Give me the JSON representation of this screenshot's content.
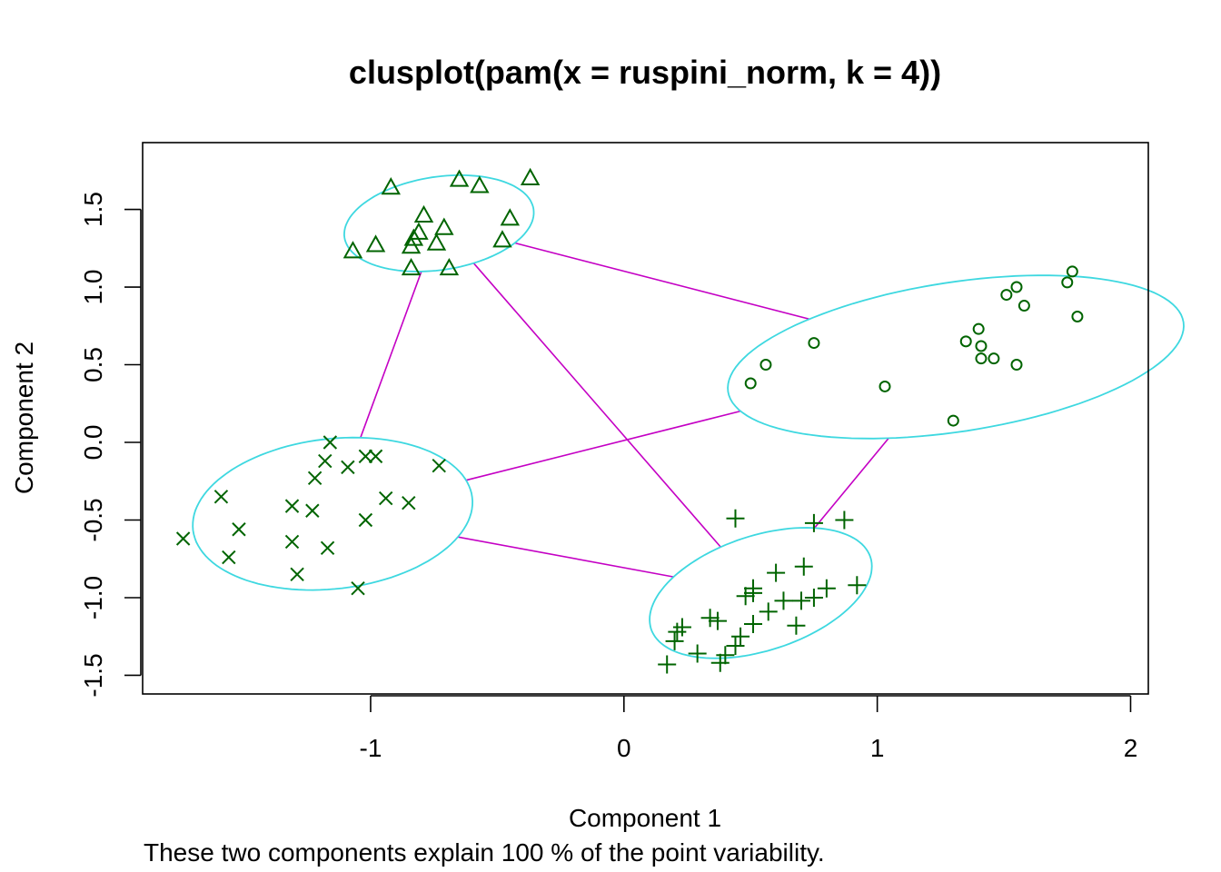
{
  "chart_data": {
    "type": "scatter",
    "title": "clusplot(pam(x = ruspini_norm, k = 4))",
    "xlabel": "Component 1",
    "ylabel": "Component 2",
    "subtitle": "These two components explain 100 % of the point variability.",
    "xlim": [
      -1.9,
      2.07
    ],
    "ylim": [
      -1.62,
      1.93
    ],
    "x_ticks": [
      -1,
      0,
      1,
      2
    ],
    "x_tick_labels": [
      "-1",
      "0",
      "1",
      "2"
    ],
    "y_ticks": [
      -1.5,
      -1.0,
      -0.5,
      0.0,
      0.5,
      1.0,
      1.5
    ],
    "y_tick_labels": [
      "-1.5",
      "-1.0",
      "-0.5",
      "0.0",
      "0.5",
      "1.0",
      "1.5"
    ],
    "grid": false,
    "colors": {
      "points": "#006400",
      "ellipse": "#3ed8e0",
      "links": "#c400c4",
      "frame": "#000000"
    },
    "clusters": [
      {
        "symbol": "circle",
        "center": [
          1.31,
          0.55
        ],
        "semi_axes": [
          0.93,
          0.47
        ],
        "angle_deg": 17,
        "points": [
          [
            0.5,
            0.38
          ],
          [
            0.56,
            0.5
          ],
          [
            0.75,
            0.64
          ],
          [
            1.03,
            0.36
          ],
          [
            1.3,
            0.14
          ],
          [
            1.35,
            0.65
          ],
          [
            1.4,
            0.73
          ],
          [
            1.41,
            0.62
          ],
          [
            1.41,
            0.54
          ],
          [
            1.46,
            0.54
          ],
          [
            1.51,
            0.95
          ],
          [
            1.55,
            1.0
          ],
          [
            1.58,
            0.88
          ],
          [
            1.55,
            0.5
          ],
          [
            1.75,
            1.03
          ],
          [
            1.77,
            1.1
          ],
          [
            1.79,
            0.81
          ]
        ]
      },
      {
        "symbol": "cross",
        "center": [
          -1.15,
          -0.46
        ],
        "semi_axes": [
          0.57,
          0.47
        ],
        "angle_deg": 26,
        "points": [
          [
            -1.74,
            -0.62
          ],
          [
            -1.59,
            -0.35
          ],
          [
            -1.56,
            -0.74
          ],
          [
            -1.52,
            -0.56
          ],
          [
            -1.31,
            -0.41
          ],
          [
            -1.31,
            -0.64
          ],
          [
            -1.29,
            -0.85
          ],
          [
            -1.23,
            -0.44
          ],
          [
            -1.22,
            -0.23
          ],
          [
            -1.18,
            -0.12
          ],
          [
            -1.17,
            -0.68
          ],
          [
            -1.16,
            0.0
          ],
          [
            -1.09,
            -0.16
          ],
          [
            -1.05,
            -0.94
          ],
          [
            -1.02,
            -0.5
          ],
          [
            -1.02,
            -0.09
          ],
          [
            -0.98,
            -0.09
          ],
          [
            -0.94,
            -0.36
          ],
          [
            -0.85,
            -0.39
          ],
          [
            -0.73,
            -0.15
          ]
        ]
      },
      {
        "symbol": "triangle",
        "center": [
          -0.73,
          1.41
        ],
        "semi_axes": [
          0.39,
          0.29
        ],
        "angle_deg": 25,
        "points": [
          [
            -1.07,
            1.23
          ],
          [
            -0.98,
            1.27
          ],
          [
            -0.92,
            1.64
          ],
          [
            -0.84,
            1.26
          ],
          [
            -0.83,
            1.31
          ],
          [
            -0.81,
            1.35
          ],
          [
            -0.79,
            1.46
          ],
          [
            -0.74,
            1.28
          ],
          [
            -0.71,
            1.38
          ],
          [
            -0.69,
            1.12
          ],
          [
            -0.84,
            1.12
          ],
          [
            -0.65,
            1.69
          ],
          [
            -0.57,
            1.65
          ],
          [
            -0.45,
            1.44
          ],
          [
            -0.48,
            1.3
          ],
          [
            -0.37,
            1.7
          ]
        ]
      },
      {
        "symbol": "plus",
        "center": [
          0.54,
          -0.97
        ],
        "semi_axes": [
          0.51,
          0.33
        ],
        "angle_deg": 42,
        "points": [
          [
            0.17,
            -1.43
          ],
          [
            0.2,
            -1.28
          ],
          [
            0.21,
            -1.22
          ],
          [
            0.23,
            -1.19
          ],
          [
            0.29,
            -1.36
          ],
          [
            0.34,
            -1.13
          ],
          [
            0.37,
            -1.15
          ],
          [
            0.38,
            -1.42
          ],
          [
            0.4,
            -1.37
          ],
          [
            0.44,
            -0.49
          ],
          [
            0.44,
            -1.31
          ],
          [
            0.46,
            -1.25
          ],
          [
            0.48,
            -0.99
          ],
          [
            0.51,
            -0.97
          ],
          [
            0.51,
            -0.94
          ],
          [
            0.51,
            -1.17
          ],
          [
            0.57,
            -1.09
          ],
          [
            0.6,
            -0.84
          ],
          [
            0.63,
            -1.02
          ],
          [
            0.68,
            -1.18
          ],
          [
            0.7,
            -1.02
          ],
          [
            0.71,
            -0.8
          ],
          [
            0.75,
            -1.0
          ],
          [
            0.75,
            -0.52
          ],
          [
            0.8,
            -0.94
          ],
          [
            0.87,
            -0.5
          ],
          [
            0.92,
            -0.92
          ]
        ]
      }
    ],
    "links": [
      [
        0,
        1
      ],
      [
        0,
        2
      ],
      [
        0,
        3
      ],
      [
        1,
        2
      ],
      [
        1,
        3
      ],
      [
        2,
        3
      ]
    ]
  }
}
